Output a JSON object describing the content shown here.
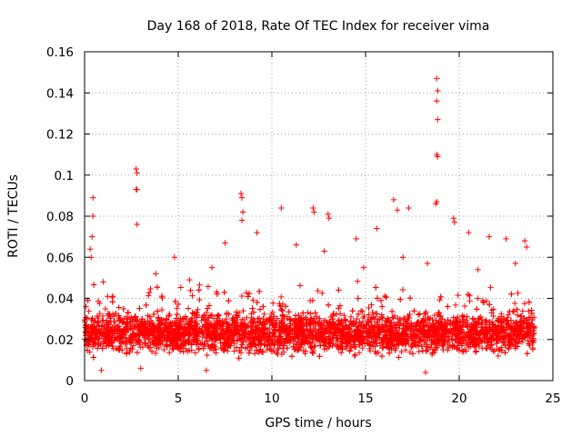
{
  "chart_data": {
    "type": "scatter",
    "title": "Day 168 of 2018, Rate Of TEC Index for receiver vima",
    "xlabel": "GPS time / hours",
    "ylabel": "ROTI / TECUs",
    "xlim": [
      0,
      25
    ],
    "ylim": [
      0,
      0.16
    ],
    "xticks": [
      0,
      5,
      10,
      15,
      20,
      25
    ],
    "yticks": [
      0,
      0.02,
      0.04,
      0.06,
      0.08,
      0.1,
      0.12,
      0.14,
      0.16
    ],
    "xtick_labels": [
      "0",
      "5",
      "10",
      "15",
      "20",
      "25"
    ],
    "ytick_labels": [
      "0",
      "0.02",
      "0.04",
      "0.06",
      "0.08",
      "0.1",
      "0.12",
      "0.14",
      "0.16"
    ],
    "grid": true,
    "marker": "+",
    "color": "#ff0000",
    "x_data_range": [
      0,
      24
    ],
    "band": {
      "typical_low": 0.01,
      "typical_high": 0.035,
      "dense_center": 0.02
    },
    "outliers": [
      {
        "x": 18.8,
        "y": 0.147
      },
      {
        "x": 18.85,
        "y": 0.141
      },
      {
        "x": 18.8,
        "y": 0.136
      },
      {
        "x": 18.85,
        "y": 0.127
      },
      {
        "x": 18.8,
        "y": 0.11
      },
      {
        "x": 18.85,
        "y": 0.109
      },
      {
        "x": 18.8,
        "y": 0.087
      },
      {
        "x": 18.75,
        "y": 0.086
      },
      {
        "x": 2.75,
        "y": 0.103
      },
      {
        "x": 2.8,
        "y": 0.101
      },
      {
        "x": 2.75,
        "y": 0.093
      },
      {
        "x": 2.8,
        "y": 0.093
      },
      {
        "x": 2.8,
        "y": 0.076
      },
      {
        "x": 0.45,
        "y": 0.089
      },
      {
        "x": 0.45,
        "y": 0.08
      },
      {
        "x": 0.4,
        "y": 0.07
      },
      {
        "x": 0.3,
        "y": 0.064
      },
      {
        "x": 0.35,
        "y": 0.06
      },
      {
        "x": 8.35,
        "y": 0.091
      },
      {
        "x": 8.4,
        "y": 0.089
      },
      {
        "x": 8.45,
        "y": 0.082
      },
      {
        "x": 8.4,
        "y": 0.078
      },
      {
        "x": 10.5,
        "y": 0.084
      },
      {
        "x": 12.2,
        "y": 0.084
      },
      {
        "x": 12.25,
        "y": 0.082
      },
      {
        "x": 13.0,
        "y": 0.081
      },
      {
        "x": 13.05,
        "y": 0.079
      },
      {
        "x": 16.5,
        "y": 0.088
      },
      {
        "x": 16.7,
        "y": 0.083
      },
      {
        "x": 17.3,
        "y": 0.084
      },
      {
        "x": 15.6,
        "y": 0.074
      },
      {
        "x": 19.7,
        "y": 0.079
      },
      {
        "x": 19.75,
        "y": 0.077
      },
      {
        "x": 14.5,
        "y": 0.069
      },
      {
        "x": 22.5,
        "y": 0.069
      },
      {
        "x": 23.5,
        "y": 0.068
      },
      {
        "x": 23.6,
        "y": 0.065
      },
      {
        "x": 9.2,
        "y": 0.072
      },
      {
        "x": 7.5,
        "y": 0.067
      },
      {
        "x": 11.3,
        "y": 0.066
      },
      {
        "x": 20.5,
        "y": 0.072
      },
      {
        "x": 21.6,
        "y": 0.07
      },
      {
        "x": 4.8,
        "y": 0.06
      },
      {
        "x": 6.8,
        "y": 0.055
      },
      {
        "x": 3.8,
        "y": 0.052
      },
      {
        "x": 5.6,
        "y": 0.049
      },
      {
        "x": 1.0,
        "y": 0.048
      },
      {
        "x": 1.5,
        "y": 0.041
      },
      {
        "x": 12.8,
        "y": 0.063
      },
      {
        "x": 14.9,
        "y": 0.055
      },
      {
        "x": 17.0,
        "y": 0.06
      },
      {
        "x": 18.3,
        "y": 0.057
      },
      {
        "x": 21.0,
        "y": 0.054
      },
      {
        "x": 23.0,
        "y": 0.057
      },
      {
        "x": 0.9,
        "y": 0.005
      },
      {
        "x": 18.2,
        "y": 0.004
      },
      {
        "x": 3.0,
        "y": 0.006
      },
      {
        "x": 6.5,
        "y": 0.005
      }
    ]
  }
}
